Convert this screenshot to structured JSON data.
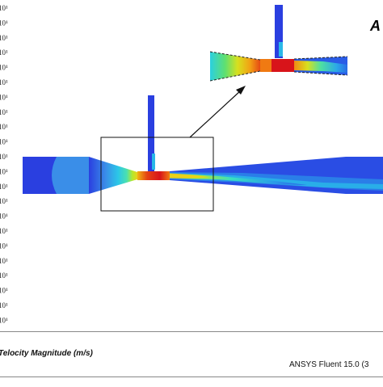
{
  "legend": {
    "tick_labels": [
      "10¹",
      "10¹",
      "10¹",
      "10¹",
      "10¹",
      "10¹",
      "10¹",
      "10¹",
      "10¹",
      "10¹",
      "10¹",
      "10¹",
      "10¹",
      "10¹",
      "10¹",
      "10¹",
      "10¹",
      "10¹",
      "10¹",
      "10¹",
      "10¹",
      "10¹"
    ]
  },
  "footer": {
    "quantity_label": "Telocity Magnitude (m/s)",
    "software_label": "ANSYS Fluent 15.0 (3"
  },
  "panel_letter": "A",
  "colors": {
    "blue": "#2a3fe0",
    "cyan": "#1fc8e6",
    "green": "#6fe03a",
    "yellow": "#e8e81a",
    "orange": "#f07a12",
    "red": "#d8141a"
  }
}
